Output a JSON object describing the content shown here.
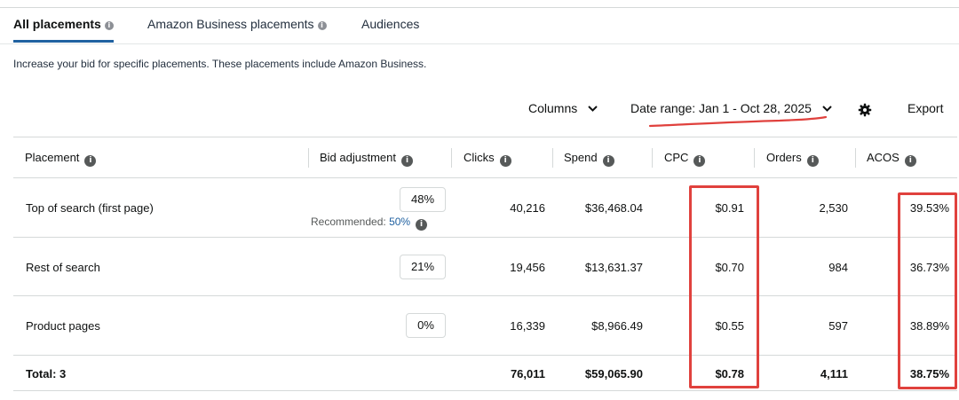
{
  "tabs": [
    {
      "label": "All placements",
      "active": true,
      "has_info": true
    },
    {
      "label": "Amazon Business placements",
      "active": false,
      "has_info": true
    },
    {
      "label": "Audiences",
      "active": false,
      "has_info": false
    }
  ],
  "description": "Increase your bid for specific placements. These placements include Amazon Business.",
  "toolbar": {
    "columns_label": "Columns",
    "date_range_label": "Date range: Jan 1 - Oct 28, 2025",
    "settings_icon": "gear-icon",
    "export_label": "Export"
  },
  "table": {
    "headers": [
      "Placement",
      "Bid adjustment",
      "Clicks",
      "Spend",
      "CPC",
      "Orders",
      "ACOS"
    ],
    "rows": [
      {
        "placement": "Top of search (first page)",
        "bid": "48%",
        "recommended_label": "Recommended:",
        "recommended_value": "50%",
        "clicks": "40,216",
        "spend": "$36,468.04",
        "cpc": "$0.91",
        "orders": "2,530",
        "acos": "39.53%"
      },
      {
        "placement": "Rest of search",
        "bid": "21%",
        "clicks": "19,456",
        "spend": "$13,631.37",
        "cpc": "$0.70",
        "orders": "984",
        "acos": "36.73%"
      },
      {
        "placement": "Product pages",
        "bid": "0%",
        "clicks": "16,339",
        "spend": "$8,966.49",
        "cpc": "$0.55",
        "orders": "597",
        "acos": "38.89%"
      }
    ],
    "total": {
      "label": "Total: 3",
      "clicks": "76,011",
      "spend": "$59,065.90",
      "cpc": "$0.78",
      "orders": "4,111",
      "acos": "38.75%"
    }
  },
  "colors": {
    "accent": "#2162a1",
    "annotation_red": "#e0413d",
    "border": "#d5d9d9"
  }
}
